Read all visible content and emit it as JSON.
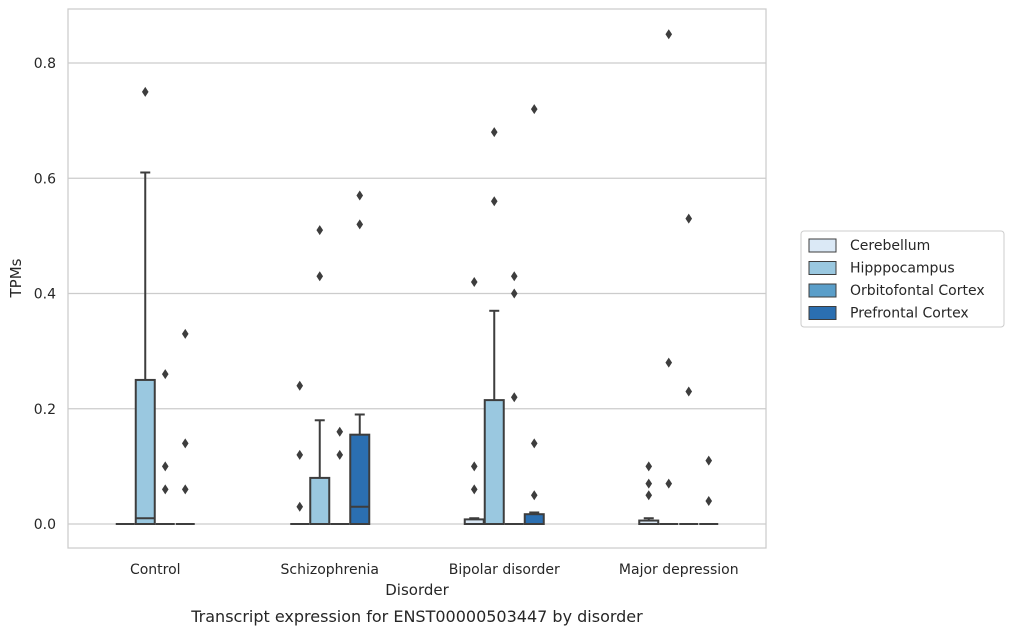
{
  "chart_data": {
    "type": "boxplot",
    "caption": "Transcript expression for ENST00000503447 by disorder",
    "xlabel": "Disorder",
    "ylabel": "TPMs",
    "ylim": [
      -0.04,
      0.89
    ],
    "yticks": [
      0.0,
      0.2,
      0.4,
      0.6,
      0.8
    ],
    "ytick_labels": [
      "0.0",
      "0.2",
      "0.4",
      "0.6",
      "0.8"
    ],
    "grid": true,
    "legend_position": "right",
    "categories": [
      "Control",
      "Schizophrenia",
      "Bipolar disorder",
      "Major depression"
    ],
    "series": [
      {
        "name": "Cerebellum",
        "color": "#dbe9f6",
        "boxes": [
          {
            "q1": 0,
            "median": 0,
            "q3": 0,
            "whisker_low": 0,
            "whisker_high": 0,
            "outliers": []
          },
          {
            "q1": 0,
            "median": 0,
            "q3": 0,
            "whisker_low": 0,
            "whisker_high": 0,
            "outliers": [
              0.03,
              0.12,
              0.24
            ]
          },
          {
            "q1": 0,
            "median": 0,
            "q3": 0.008,
            "whisker_low": 0,
            "whisker_high": 0.01,
            "outliers": [
              0.06,
              0.1,
              0.42
            ]
          },
          {
            "q1": 0,
            "median": 0,
            "q3": 0.006,
            "whisker_low": 0,
            "whisker_high": 0.01,
            "outliers": [
              0.05,
              0.07,
              0.1
            ]
          }
        ]
      },
      {
        "name": "Hipppocampus",
        "color": "#9ac8e0",
        "boxes": [
          {
            "q1": 0,
            "median": 0.01,
            "q3": 0.25,
            "whisker_low": 0,
            "whisker_high": 0.61,
            "outliers": [
              0.75
            ]
          },
          {
            "q1": 0,
            "median": 0,
            "q3": 0.08,
            "whisker_low": 0,
            "whisker_high": 0.18,
            "outliers": [
              0.43,
              0.51
            ]
          },
          {
            "q1": 0,
            "median": 0,
            "q3": 0.215,
            "whisker_low": 0,
            "whisker_high": 0.37,
            "outliers": [
              0.56,
              0.68
            ]
          },
          {
            "q1": 0,
            "median": 0,
            "q3": 0,
            "whisker_low": 0,
            "whisker_high": 0,
            "outliers": [
              0.07,
              0.28,
              0.85
            ]
          }
        ]
      },
      {
        "name": "Orbitofontal Cortex",
        "color": "#5a9ec9",
        "boxes": [
          {
            "q1": 0,
            "median": 0,
            "q3": 0,
            "whisker_low": 0,
            "whisker_high": 0,
            "outliers": [
              0.06,
              0.1,
              0.26
            ]
          },
          {
            "q1": 0,
            "median": 0,
            "q3": 0,
            "whisker_low": 0,
            "whisker_high": 0,
            "outliers": [
              0.12,
              0.16
            ]
          },
          {
            "q1": 0,
            "median": 0,
            "q3": 0,
            "whisker_low": 0,
            "whisker_high": 0,
            "outliers": [
              0.22,
              0.4,
              0.43
            ]
          },
          {
            "q1": 0,
            "median": 0,
            "q3": 0,
            "whisker_low": 0,
            "whisker_high": 0,
            "outliers": [
              0.23,
              0.53
            ]
          }
        ]
      },
      {
        "name": "Prefrontal Cortex",
        "color": "#2b6fb1",
        "boxes": [
          {
            "q1": 0,
            "median": 0,
            "q3": 0,
            "whisker_low": 0,
            "whisker_high": 0,
            "outliers": [
              0.06,
              0.14,
              0.33
            ]
          },
          {
            "q1": 0,
            "median": 0.03,
            "q3": 0.155,
            "whisker_low": 0,
            "whisker_high": 0.19,
            "outliers": [
              0.52,
              0.57
            ]
          },
          {
            "q1": 0,
            "median": 0,
            "q3": 0.017,
            "whisker_low": 0,
            "whisker_high": 0.02,
            "outliers": [
              0.05,
              0.14,
              0.72
            ]
          },
          {
            "q1": 0,
            "median": 0,
            "q3": 0,
            "whisker_low": 0,
            "whisker_high": 0,
            "outliers": [
              0.04,
              0.11
            ]
          }
        ]
      }
    ]
  }
}
